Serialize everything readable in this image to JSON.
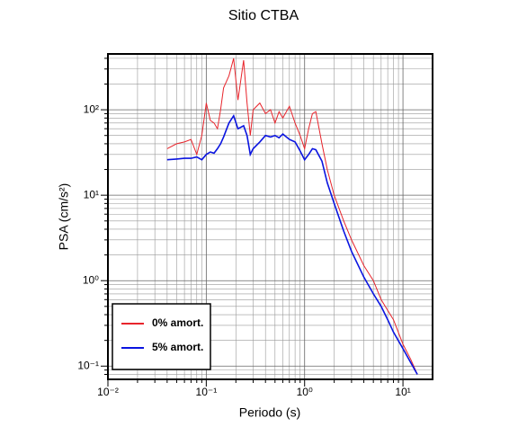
{
  "chart_data": {
    "type": "line",
    "title": "Sitio CTBA",
    "x_label": "Periodo (s)",
    "y_label": "PSA (cm/s²)",
    "x_scale": "log",
    "y_scale": "log",
    "grid": true,
    "legend": "lower left",
    "xlim": [
      0.01,
      20
    ],
    "ylim": [
      0.07,
      450
    ],
    "xticks": [
      {
        "value": 0.01,
        "label": "10⁻²"
      },
      {
        "value": 0.1,
        "label": "10⁻¹"
      },
      {
        "value": 1,
        "label": "10⁰"
      },
      {
        "value": 10,
        "label": "10¹"
      }
    ],
    "yticks": [
      {
        "value": 0.1,
        "label": "10⁻¹"
      },
      {
        "value": 1,
        "label": "10⁰"
      },
      {
        "value": 10,
        "label": "10¹"
      },
      {
        "value": 100,
        "label": "10²"
      }
    ],
    "x": [
      0.04,
      0.05,
      0.06,
      0.07,
      0.08,
      0.09,
      0.1,
      0.11,
      0.12,
      0.13,
      0.14,
      0.15,
      0.17,
      0.19,
      0.21,
      0.24,
      0.26,
      0.28,
      0.3,
      0.35,
      0.4,
      0.45,
      0.5,
      0.55,
      0.6,
      0.7,
      0.8,
      0.9,
      1.0,
      1.1,
      1.2,
      1.3,
      1.5,
      1.7,
      2.0,
      2.5,
      3,
      4,
      5,
      6,
      7,
      8,
      10,
      12,
      14
    ],
    "series": [
      {
        "name": "0% amort.",
        "color": "#e8242b",
        "width": 1,
        "values": [
          35,
          40,
          42,
          45,
          30,
          50,
          120,
          75,
          70,
          60,
          100,
          180,
          250,
          400,
          130,
          380,
          120,
          50,
          100,
          120,
          90,
          100,
          70,
          95,
          80,
          110,
          70,
          50,
          35,
          60,
          90,
          95,
          40,
          20,
          10,
          5,
          3,
          1.5,
          1.0,
          0.6,
          0.45,
          0.35,
          0.18,
          0.12,
          0.08
        ]
      },
      {
        "name": "5% amort.",
        "color": "#0a14e0",
        "width": 1.6,
        "values": [
          26,
          26.5,
          27,
          27,
          28,
          26,
          30,
          32,
          31,
          35,
          40,
          48,
          70,
          85,
          60,
          65,
          50,
          30,
          35,
          42,
          50,
          48,
          50,
          47,
          52,
          45,
          42,
          33,
          26,
          30,
          35,
          34,
          25,
          14,
          8,
          3.8,
          2.2,
          1.1,
          0.7,
          0.5,
          0.35,
          0.25,
          0.16,
          0.11,
          0.08
        ]
      }
    ]
  }
}
